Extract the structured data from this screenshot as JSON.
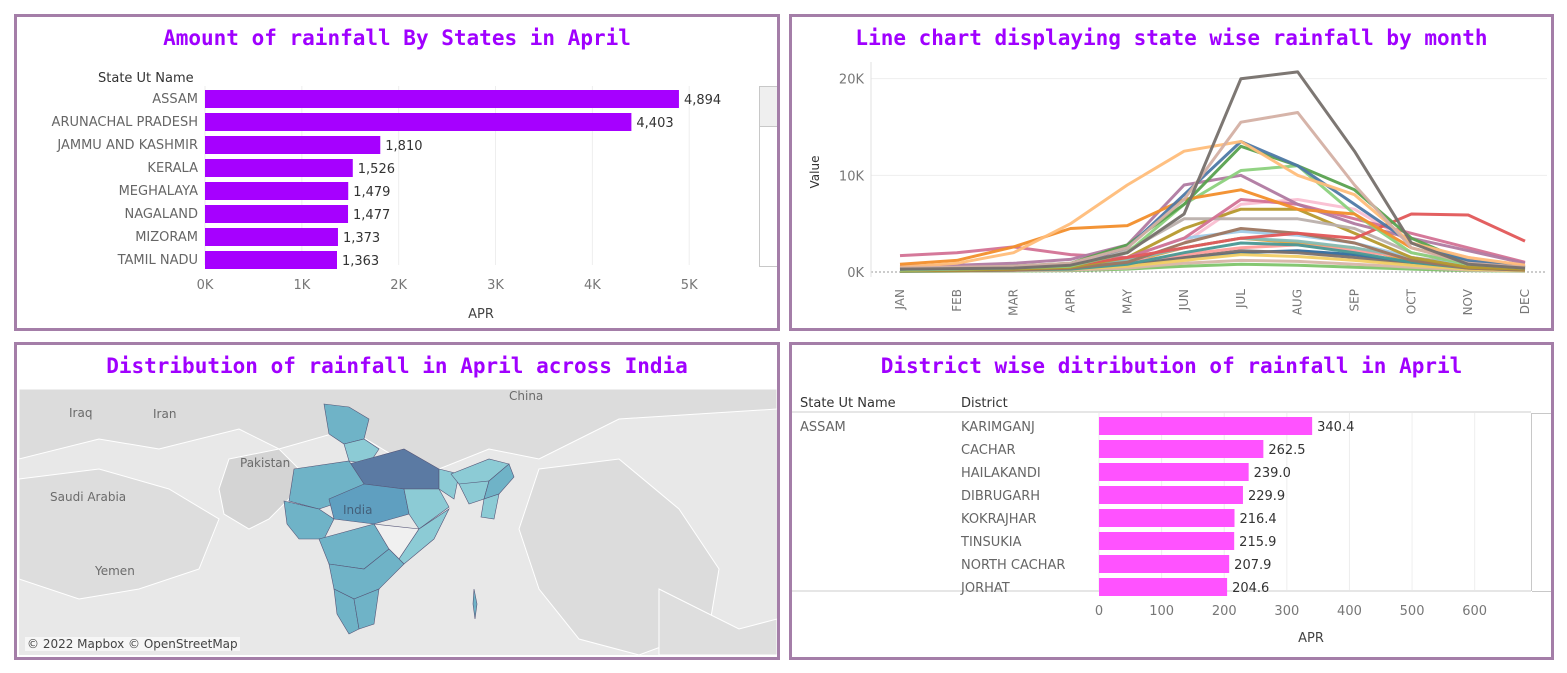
{
  "colors": {
    "title": "#a000ff",
    "bar_state": "#a600ff",
    "bar_district": "#ff52ff",
    "border": "#a47ea8"
  },
  "panels": {
    "state_bar": {
      "title": "Amount of rainfall By States in April",
      "header": "State Ut Name",
      "xlabel": "APR"
    },
    "line": {
      "title": "Line chart displaying state wise rainfall by month",
      "ylabel": "Value"
    },
    "map": {
      "title": "Distribution of rainfall in April across India",
      "labels": [
        "Iraq",
        "Iran",
        "China",
        "Pakistan",
        "Saudi Arabia",
        "India",
        "Yemen"
      ],
      "credit": "© 2022 Mapbox © OpenStreetMap"
    },
    "district": {
      "title": "District wise ditribution of rainfall in April",
      "header_state": "State Ut Name",
      "header_district": "District",
      "state": "ASSAM",
      "xlabel": "APR"
    }
  },
  "chart_data": [
    {
      "type": "bar",
      "orientation": "horizontal",
      "title": "Amount of rainfall By States in April",
      "xlabel": "APR",
      "categories": [
        "ASSAM",
        "ARUNACHAL PRADESH",
        "JAMMU AND KASHMIR",
        "KERALA",
        "MEGHALAYA",
        "NAGALAND",
        "MIZORAM",
        "TAMIL NADU"
      ],
      "values": [
        4894,
        4403,
        1810,
        1526,
        1479,
        1477,
        1373,
        1363
      ],
      "value_labels": [
        "4,894",
        "4,403",
        "1,810",
        "1,526",
        "1,479",
        "1,477",
        "1,373",
        "1,363"
      ],
      "xticks": [
        "0K",
        "1K",
        "2K",
        "3K",
        "4K",
        "5K"
      ],
      "xlim": [
        0,
        5700
      ]
    },
    {
      "type": "line",
      "title": "Line chart displaying state wise rainfall by month",
      "ylabel": "Value",
      "x": [
        "JAN",
        "FEB",
        "MAR",
        "APR",
        "MAY",
        "JUN",
        "JUL",
        "AUG",
        "SEP",
        "OCT",
        "NOV",
        "DEC"
      ],
      "yticks": [
        "0K",
        "10K",
        "20K"
      ],
      "ylim": [
        0,
        21000
      ],
      "series": [
        {
          "color": "#76706b",
          "values": [
            300,
            350,
            400,
            700,
            2000,
            6000,
            20000,
            20700,
            12500,
            3000,
            800,
            400
          ]
        },
        {
          "color": "#d4b0a4",
          "values": [
            400,
            500,
            600,
            900,
            2500,
            7500,
            15500,
            16500,
            9000,
            2500,
            900,
            500
          ]
        },
        {
          "color": "#ffbd7a",
          "values": [
            500,
            900,
            2000,
            5000,
            9000,
            12500,
            13500,
            10000,
            8000,
            3000,
            1500,
            700
          ]
        },
        {
          "color": "#4e79a7",
          "values": [
            300,
            400,
            500,
            800,
            2500,
            8000,
            13500,
            11000,
            7000,
            3000,
            1200,
            500
          ]
        },
        {
          "color": "#59a14f",
          "values": [
            300,
            400,
            600,
            900,
            2800,
            7000,
            13000,
            11000,
            8500,
            3500,
            1000,
            500
          ]
        },
        {
          "color": "#f28e2b",
          "values": [
            800,
            1200,
            2600,
            4500,
            4800,
            7500,
            8500,
            6500,
            6000,
            2500,
            1000,
            600
          ]
        },
        {
          "color": "#8cd17d",
          "values": [
            200,
            300,
            400,
            600,
            2000,
            7000,
            10500,
            11000,
            6000,
            2000,
            800,
            400
          ]
        },
        {
          "color": "#e15759",
          "values": [
            300,
            400,
            500,
            700,
            1500,
            2500,
            3500,
            4000,
            3500,
            6000,
            5900,
            3200
          ]
        },
        {
          "color": "#b07aa1",
          "values": [
            600,
            700,
            900,
            1300,
            2800,
            9000,
            10000,
            7000,
            5000,
            3500,
            2200,
            900
          ]
        },
        {
          "color": "#d37295",
          "values": [
            1700,
            2000,
            2600,
            1800,
            1500,
            3500,
            7500,
            7000,
            5500,
            4000,
            2500,
            1000
          ]
        },
        {
          "color": "#bab0ac",
          "values": [
            200,
            300,
            500,
            800,
            2200,
            5500,
            5500,
            5500,
            4500,
            2000,
            900,
            400
          ]
        },
        {
          "color": "#b6992d",
          "values": [
            150,
            200,
            300,
            500,
            1500,
            4500,
            6500,
            6500,
            4000,
            1500,
            500,
            300
          ]
        },
        {
          "color": "#9d7660",
          "values": [
            100,
            150,
            200,
            400,
            1000,
            3000,
            4500,
            4000,
            3000,
            1200,
            400,
            200
          ]
        },
        {
          "color": "#a0cbe8",
          "values": [
            200,
            300,
            400,
            600,
            1500,
            3500,
            4200,
            3800,
            3000,
            1500,
            600,
            300
          ]
        },
        {
          "color": "#86bcb6",
          "values": [
            150,
            200,
            300,
            500,
            1200,
            2500,
            3500,
            3200,
            2500,
            1500,
            700,
            300
          ]
        },
        {
          "color": "#499894",
          "values": [
            100,
            150,
            200,
            300,
            800,
            2000,
            3000,
            2800,
            2000,
            1000,
            400,
            200
          ]
        },
        {
          "color": "#ff9d9a",
          "values": [
            300,
            400,
            500,
            700,
            1000,
            1800,
            2500,
            2800,
            2200,
            1500,
            800,
            400
          ]
        },
        {
          "color": "#fabfd2",
          "values": [
            200,
            300,
            400,
            600,
            900,
            3000,
            7000,
            7500,
            6500,
            3000,
            1500,
            600
          ]
        },
        {
          "color": "#f1ce63",
          "values": [
            100,
            150,
            200,
            300,
            600,
            1200,
            1800,
            1600,
            1200,
            700,
            300,
            150
          ]
        },
        {
          "color": "#d7b5a6",
          "values": [
            100,
            100,
            150,
            200,
            400,
            900,
            1200,
            1100,
            800,
            500,
            200,
            100
          ]
        },
        {
          "color": "#79706e",
          "values": [
            100,
            120,
            150,
            250,
            600,
            1500,
            2200,
            2000,
            1500,
            800,
            300,
            150
          ]
        },
        {
          "color": "#2f6b9e",
          "values": [
            300,
            350,
            400,
            500,
            900,
            1500,
            2000,
            2200,
            1800,
            1000,
            600,
            300
          ]
        },
        {
          "color": "#e8a33b",
          "values": [
            200,
            250,
            350,
            500,
            1000,
            2500,
            3500,
            3000,
            2500,
            1200,
            500,
            250
          ]
        },
        {
          "color": "#7ec46a",
          "values": [
            50,
            80,
            100,
            150,
            300,
            600,
            800,
            700,
            500,
            300,
            150,
            80
          ]
        }
      ]
    },
    {
      "type": "bar",
      "orientation": "horizontal",
      "title": "District wise ditribution of rainfall in April",
      "xlabel": "APR",
      "categories": [
        "KARIMGANJ",
        "CACHAR",
        "HAILAKANDI",
        "DIBRUGARH",
        "KOKRAJHAR",
        "TINSUKIA",
        "NORTH CACHAR",
        "JORHAT"
      ],
      "values": [
        340.4,
        262.5,
        239.0,
        229.9,
        216.4,
        215.9,
        207.9,
        204.6
      ],
      "value_labels": [
        "340.4",
        "262.5",
        "239.0",
        "229.9",
        "216.4",
        "215.9",
        "207.9",
        "204.6"
      ],
      "xticks": [
        "0",
        "100",
        "200",
        "300",
        "400",
        "500",
        "600"
      ],
      "xlim": [
        0,
        650
      ]
    }
  ]
}
